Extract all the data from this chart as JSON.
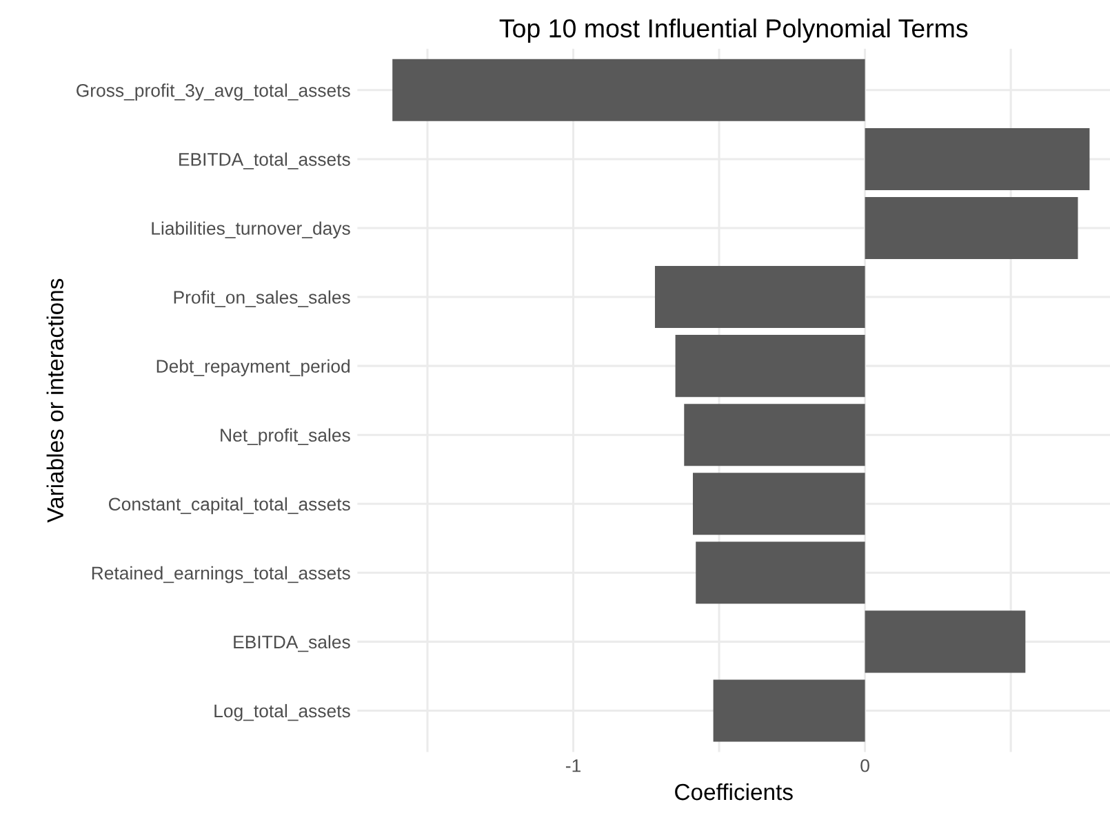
{
  "chart_data": {
    "type": "bar",
    "orientation": "horizontal",
    "title": "Top 10 most Influential Polynomial Terms",
    "xlabel": "Coefficients",
    "ylabel": "Variables or interactions",
    "categories": [
      "Gross_profit_3y_avg_total_assets",
      "EBITDA_total_assets",
      "Liabilities_turnover_days",
      "Profit_on_sales_sales",
      "Debt_repayment_period",
      "Net_profit_sales",
      "Constant_capital_total_assets",
      "Retained_earnings_total_assets",
      "EBITDA_sales",
      "Log_total_assets"
    ],
    "values": [
      -1.62,
      0.77,
      0.73,
      -0.72,
      -0.65,
      -0.62,
      -0.59,
      -0.58,
      0.55,
      -0.52
    ],
    "color": "#595959",
    "xlim": [
      -1.74,
      0.84
    ],
    "xticks": [
      {
        "value": -1.5,
        "label": null
      },
      -1,
      {
        "value": -0.5,
        "label": null
      },
      0,
      {
        "value": 0.5,
        "label": null
      }
    ],
    "grid": true
  }
}
